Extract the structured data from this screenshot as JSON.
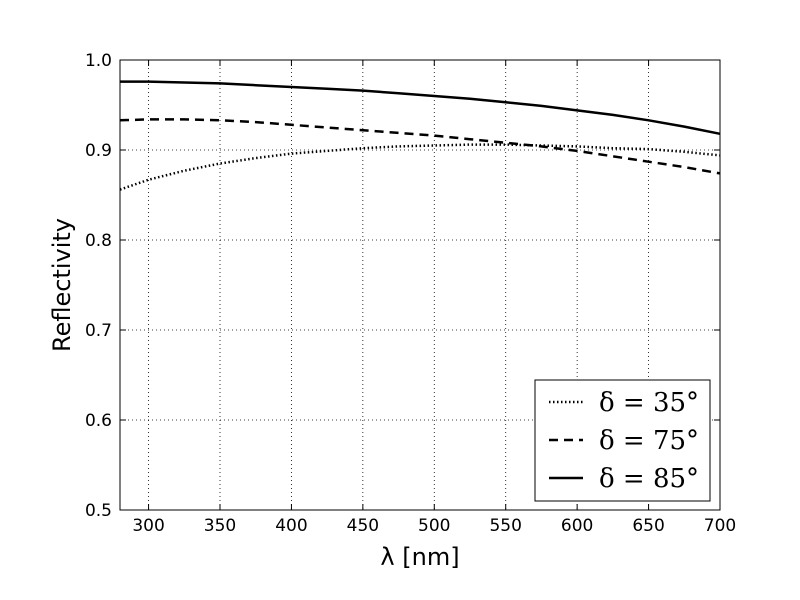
{
  "chart_data": {
    "type": "line",
    "xlabel": "λ [nm]",
    "ylabel": "Reflectivity",
    "xlim": [
      280,
      700
    ],
    "ylim": [
      0.5,
      1.0
    ],
    "xticks": [
      300,
      350,
      400,
      450,
      500,
      550,
      600,
      650,
      700
    ],
    "yticks": [
      0.5,
      0.6,
      0.7,
      0.8,
      0.9,
      1.0
    ],
    "xtick_labels": [
      "300",
      "350",
      "400",
      "450",
      "500",
      "550",
      "600",
      "650",
      "700"
    ],
    "ytick_labels": [
      "0.5",
      "0.6",
      "0.7",
      "0.8",
      "0.9",
      "1.0"
    ],
    "grid": true,
    "legend_position": "bottom-right",
    "series": [
      {
        "name": "δ = 35°",
        "style": "dotted",
        "color": "#000000",
        "x": [
          280,
          300,
          325,
          350,
          375,
          400,
          425,
          450,
          475,
          500,
          525,
          550,
          575,
          600,
          625,
          650,
          675,
          700
        ],
        "y": [
          0.856,
          0.867,
          0.877,
          0.885,
          0.891,
          0.896,
          0.899,
          0.902,
          0.904,
          0.905,
          0.906,
          0.906,
          0.905,
          0.904,
          0.902,
          0.901,
          0.898,
          0.894
        ]
      },
      {
        "name": "δ = 75°",
        "style": "dashed",
        "color": "#000000",
        "x": [
          280,
          300,
          325,
          350,
          375,
          400,
          425,
          450,
          475,
          500,
          525,
          550,
          575,
          600,
          625,
          650,
          675,
          700
        ],
        "y": [
          0.933,
          0.934,
          0.934,
          0.933,
          0.931,
          0.928,
          0.925,
          0.922,
          0.919,
          0.916,
          0.912,
          0.908,
          0.904,
          0.899,
          0.893,
          0.887,
          0.881,
          0.874
        ]
      },
      {
        "name": "δ = 85°",
        "style": "solid",
        "color": "#000000",
        "x": [
          280,
          300,
          325,
          350,
          375,
          400,
          425,
          450,
          475,
          500,
          525,
          550,
          575,
          600,
          625,
          650,
          675,
          700
        ],
        "y": [
          0.976,
          0.976,
          0.975,
          0.974,
          0.972,
          0.97,
          0.968,
          0.966,
          0.963,
          0.96,
          0.957,
          0.953,
          0.949,
          0.944,
          0.939,
          0.933,
          0.926,
          0.918
        ]
      }
    ]
  }
}
